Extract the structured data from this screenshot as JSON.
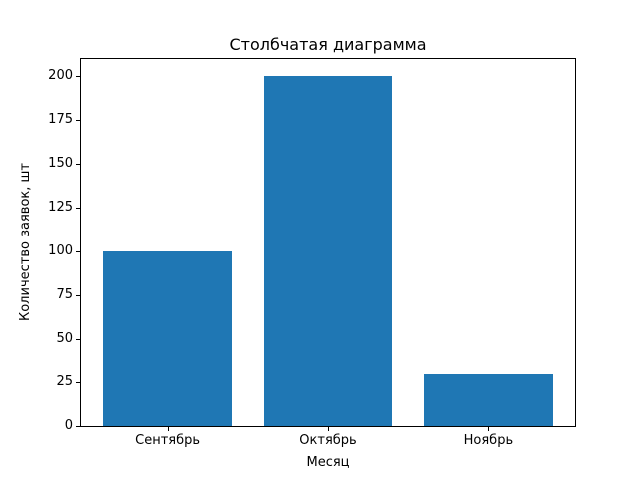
{
  "chart_data": {
    "type": "bar",
    "title": "Столбчатая диаграмма",
    "xlabel": "Месяц",
    "ylabel": "Количество заявок, шт",
    "categories": [
      "Сентябрь",
      "Октябрь",
      "Ноябрь"
    ],
    "values": [
      100,
      200,
      30
    ],
    "ylim": [
      0,
      210
    ],
    "yticks": [
      0,
      25,
      50,
      75,
      100,
      125,
      150,
      175,
      200
    ],
    "bar_color": "#1f77b4",
    "axis_color": "#000000",
    "background_color": "#ffffff",
    "legend": "none",
    "grid": "off"
  }
}
